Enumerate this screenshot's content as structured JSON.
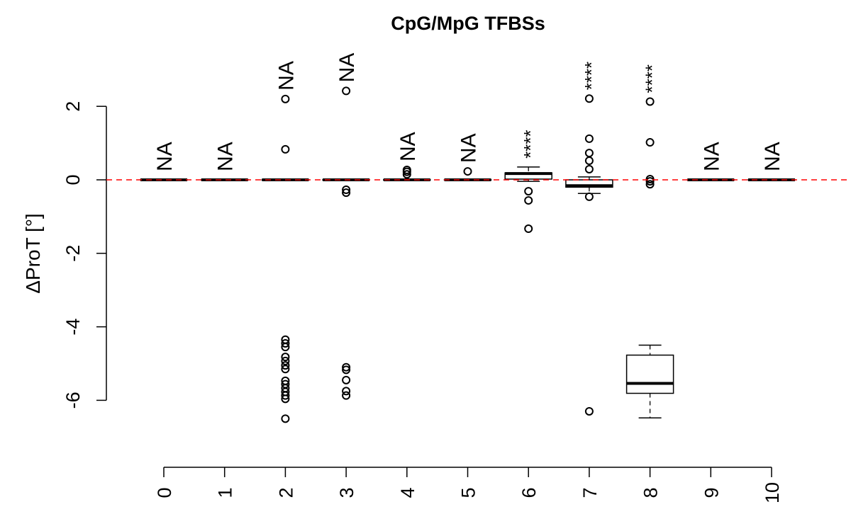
{
  "chart_data": {
    "type": "boxplot",
    "title": "CpG/MpG TFBSs",
    "xlabel": "",
    "ylabel": "ΔProT [°]",
    "ylim": [
      -7.5,
      3.2
    ],
    "yticks": [
      -6,
      -4,
      -2,
      0,
      2
    ],
    "ytick_labels": [
      "-6",
      "-4",
      "-2",
      "0",
      "2"
    ],
    "categories": [
      "0",
      "1",
      "2",
      "3",
      "4",
      "5",
      "6",
      "7",
      "8",
      "9",
      "10"
    ],
    "reference_line": {
      "y": 0,
      "color": "#ff0000",
      "style": "dashed"
    },
    "boxes": [
      {
        "q": [
          0,
          0,
          0,
          0,
          0
        ],
        "outliers": [],
        "annotation": "NA",
        "annotation_high": false
      },
      {
        "q": [
          0,
          0,
          0,
          0,
          0
        ],
        "outliers": [],
        "annotation": "NA",
        "annotation_high": false
      },
      {
        "q": [
          0,
          0,
          0,
          0,
          0
        ],
        "outliers": [
          2.2,
          0.83,
          -4.35,
          -4.45,
          -4.55,
          -4.82,
          -4.93,
          -5.05,
          -5.15,
          -5.47,
          -5.56,
          -5.67,
          -5.77,
          -5.87,
          -5.96,
          -6.5
        ],
        "annotation": "NA",
        "annotation_high": true
      },
      {
        "q": [
          0,
          0,
          0,
          0,
          0
        ],
        "outliers": [
          2.42,
          -0.27,
          -0.35,
          -5.1,
          -5.17,
          -5.45,
          -5.75,
          -5.87
        ],
        "annotation": "NA",
        "annotation_high": true
      },
      {
        "q": [
          0,
          0,
          0,
          0,
          0
        ],
        "outliers": [
          0.15,
          0.22,
          0.27
        ],
        "annotation": "NA",
        "annotation_high": false
      },
      {
        "q": [
          0,
          0,
          0,
          0,
          0
        ],
        "outliers": [
          0.23
        ],
        "annotation": "NA",
        "annotation_high": false
      },
      {
        "q": [
          -0.04,
          0.02,
          0.17,
          0.19,
          0.35
        ],
        "outliers": [
          -0.31,
          -0.56,
          -1.33
        ],
        "annotation": "****",
        "annotation_high": false
      },
      {
        "q": [
          -0.37,
          -0.2,
          -0.16,
          0,
          0.08
        ],
        "outliers": [
          2.21,
          1.12,
          0.73,
          0.52,
          0.29,
          -0.46,
          -6.3
        ],
        "annotation": "****",
        "annotation_high": false
      },
      {
        "q": [
          -6.48,
          -5.81,
          -5.54,
          -4.77,
          -4.5
        ],
        "outliers": [
          2.13,
          1.02,
          0.02,
          -0.04,
          -0.12
        ],
        "annotation": "****",
        "annotation_high": false
      },
      {
        "q": [
          0,
          0,
          0,
          0,
          0
        ],
        "outliers": [],
        "annotation": "NA",
        "annotation_high": false
      },
      {
        "q": [
          0,
          0,
          0,
          0,
          0
        ],
        "outliers": [],
        "annotation": "NA",
        "annotation_high": false
      }
    ]
  }
}
